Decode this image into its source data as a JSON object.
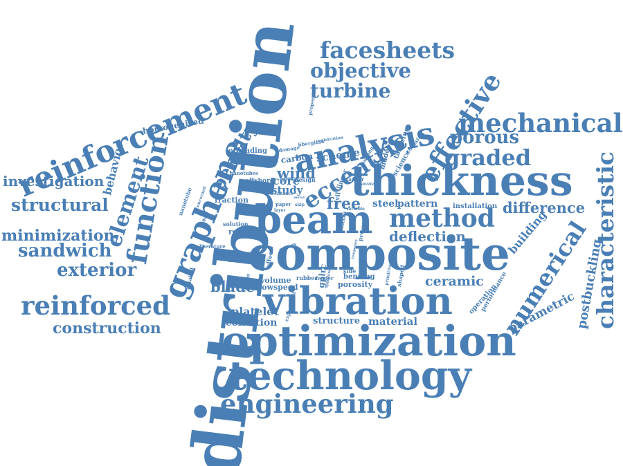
{
  "color": "#4a7fb5",
  "words": {
    "distribution": "distribution",
    "composite": "composite",
    "thickness": "thickness",
    "optimization": "optimization",
    "technology": "technology",
    "vibration": "vibration",
    "beam": "beam",
    "reinforcement": "reinforcement",
    "analysis": "analysis",
    "graphene": "graphene",
    "mechanical": "mechanical",
    "engineering": "engineering",
    "reinforced": "reinforced",
    "function": "function",
    "method": "method",
    "numerical": "numerical",
    "characteristic": "characteristic",
    "effective": "effective",
    "eccentric": "eccentric",
    "facesheets": "facesheets",
    "objective": "objective",
    "turbine": "turbine",
    "graded": "graded",
    "porous": "porous",
    "element": "element",
    "penalty": "penalty",
    "structural": "structural",
    "sandwich": "sandwich",
    "exterior": "exterior",
    "minimization": "minimization",
    "investigation": "investigation",
    "construction": "construction",
    "difference": "difference",
    "ceramic": "ceramic",
    "deflection": "deflection",
    "free": "free",
    "blade": "blade",
    "behavior": "behavior",
    "homogenized": "homogenized",
    "parametric": "parametric",
    "postbuckling": "postbuckling",
    "building": "building",
    "material": "material",
    "structure": "structure",
    "condition": "condition",
    "platelet": "platelet",
    "study": "study",
    "wind": "wind",
    "core": "core",
    "scheme": "scheme",
    "steel": "steel",
    "pattern": "pattern",
    "carbon": "carbon",
    "fraction": "fraction",
    "result": "result",
    "solution": "solution",
    "offloading": "offloading",
    "nanotube": "nanotube",
    "offshore": "offshore",
    "design": "design",
    "working": "working",
    "shuttle": "shuttle",
    "volume": "volume",
    "lowspeed": "lowspeed",
    "gplrc": "gplrc",
    "porosity": "porosity",
    "bending": "bending",
    "operation": "operation",
    "performance": "performance",
    "installation": "installation",
    "model": "model",
    "science": "science",
    "tailoring": "tailoring",
    "collision": "collision",
    "effect": "effect",
    "rubber": "rubber",
    "fender": "fender",
    "side": "side",
    "prevent": "prevent",
    "linear": "linear",
    "shaped": "shaped",
    "primitive": "primitive",
    "experiment": "experiment",
    "optimal": "optimal",
    "enhance": "enhance",
    "nanotubes": "nanotubes",
    "energy": "energy",
    "literature": "literature",
    "properties": "properties",
    "fiberglass": "fiberglass",
    "damage": "damage",
    "tanker": "tanker",
    "civil": "civil",
    "loading": "loading",
    "concerned": "concerned",
    "fluid": "fluid",
    "paper": "paper",
    "detailed": "detailed",
    "varying": "varying",
    "variable": "variable",
    "contact": "contact",
    "several": "several",
    "registration": "registration",
    "layer": "layer",
    "approximate": "approximate",
    "temporary": "temporary",
    "skip": "skip",
    "metal": "metal"
  }
}
